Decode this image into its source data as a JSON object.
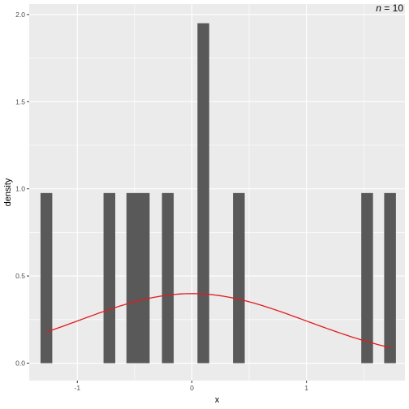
{
  "chart_data": {
    "type": "bar",
    "xlabel": "x",
    "ylabel": "density",
    "annotation": {
      "italic": "n",
      "rest": " = 10"
    },
    "xlim": [
      -1.42,
      1.86
    ],
    "ylim": [
      -0.1,
      2.06
    ],
    "x_ticks": [
      -1,
      0,
      1
    ],
    "y_ticks": [
      0.0,
      0.5,
      1.0,
      1.5,
      2.0
    ],
    "x_tick_labels": [
      "-1",
      "0",
      "1"
    ],
    "y_tick_labels": [
      "0.0",
      "0.5",
      "1.0",
      "1.5",
      "2.0"
    ],
    "bin_width": 0.1025,
    "bars": [
      {
        "x": -1.27,
        "density": 0.976
      },
      {
        "x": -0.72,
        "density": 0.976
      },
      {
        "x": -0.52,
        "density": 0.976
      },
      {
        "x": -0.42,
        "density": 0.976
      },
      {
        "x": -0.21,
        "density": 0.976
      },
      {
        "x": 0.1,
        "density": 1.95
      },
      {
        "x": 0.41,
        "density": 0.976
      },
      {
        "x": 1.53,
        "density": 0.976
      },
      {
        "x": 1.73,
        "density": 0.976
      }
    ],
    "curve": {
      "type": "normal_density",
      "mean": 0,
      "sd": 1,
      "from": -1.27,
      "to": 1.73
    },
    "colors": {
      "panel": "#ebebeb",
      "grid": "#ffffff",
      "bar": "#595959",
      "curve": "#e31a1c"
    },
    "grid": true
  }
}
